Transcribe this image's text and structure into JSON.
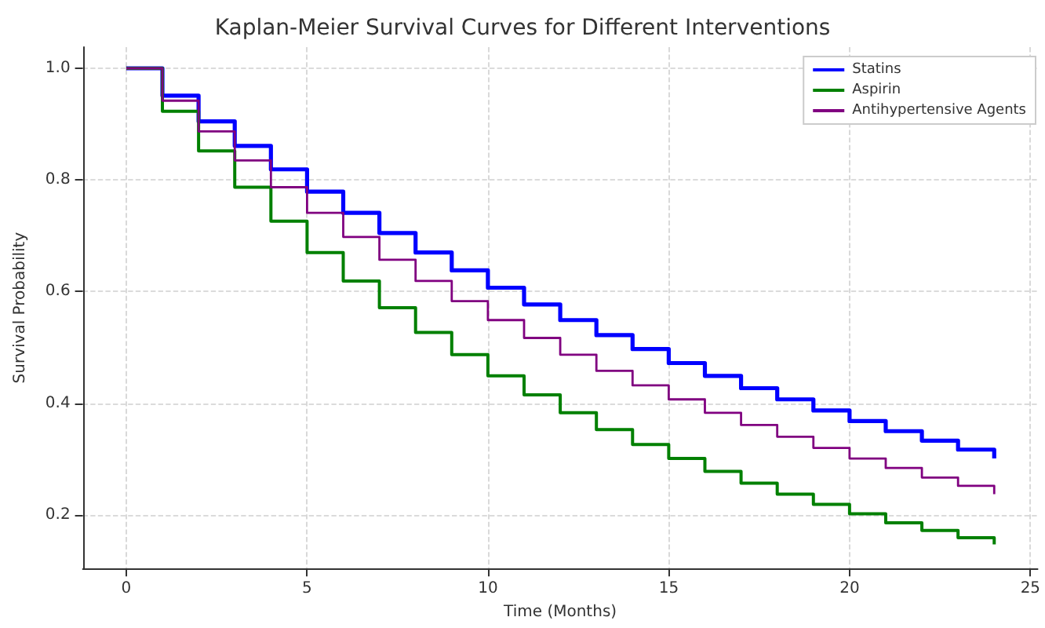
{
  "chart_data": {
    "type": "step",
    "title": "Kaplan-Meier Survival Curves for Different Interventions",
    "xlabel": "Time (Months)",
    "ylabel": "Survival Probability",
    "x": [
      0,
      1,
      2,
      3,
      4,
      5,
      6,
      7,
      8,
      9,
      10,
      11,
      12,
      13,
      14,
      15,
      16,
      17,
      18,
      19,
      20,
      21,
      22,
      23,
      24
    ],
    "series": [
      {
        "name": "Statins",
        "color": "#0000ff",
        "values": [
          1,
          0.951,
          0.905,
          0.861,
          0.819,
          0.779,
          0.741,
          0.705,
          0.67,
          0.638,
          0.607,
          0.577,
          0.549,
          0.522,
          0.497,
          0.472,
          0.449,
          0.427,
          0.407,
          0.387,
          0.368,
          0.35,
          0.333,
          0.317,
          0.301
        ]
      },
      {
        "name": "Aspirin",
        "color": "#008000",
        "values": [
          1,
          0.923,
          0.852,
          0.787,
          0.726,
          0.67,
          0.619,
          0.571,
          0.527,
          0.487,
          0.449,
          0.415,
          0.383,
          0.353,
          0.326,
          0.301,
          0.278,
          0.257,
          0.237,
          0.219,
          0.202,
          0.186,
          0.172,
          0.159,
          0.147
        ]
      },
      {
        "name": "Antihypertensive Agents",
        "color": "#800080",
        "values": [
          1,
          0.942,
          0.887,
          0.835,
          0.787,
          0.741,
          0.698,
          0.657,
          0.619,
          0.583,
          0.549,
          0.517,
          0.487,
          0.458,
          0.432,
          0.407,
          0.383,
          0.361,
          0.34,
          0.32,
          0.301,
          0.284,
          0.267,
          0.252,
          0.237
        ]
      }
    ],
    "xlim": [
      -1.2,
      25.2
    ],
    "xticks": [
      0,
      5,
      10,
      15,
      20,
      25
    ],
    "ylim": [
      0.104,
      1.038
    ],
    "yticks": [
      0.2,
      0.4,
      0.6,
      0.8,
      {
        "value": 1,
        "label": "1.0"
      }
    ],
    "grid": true,
    "legend": "top right",
    "line_style": "solid",
    "marker": "none"
  }
}
